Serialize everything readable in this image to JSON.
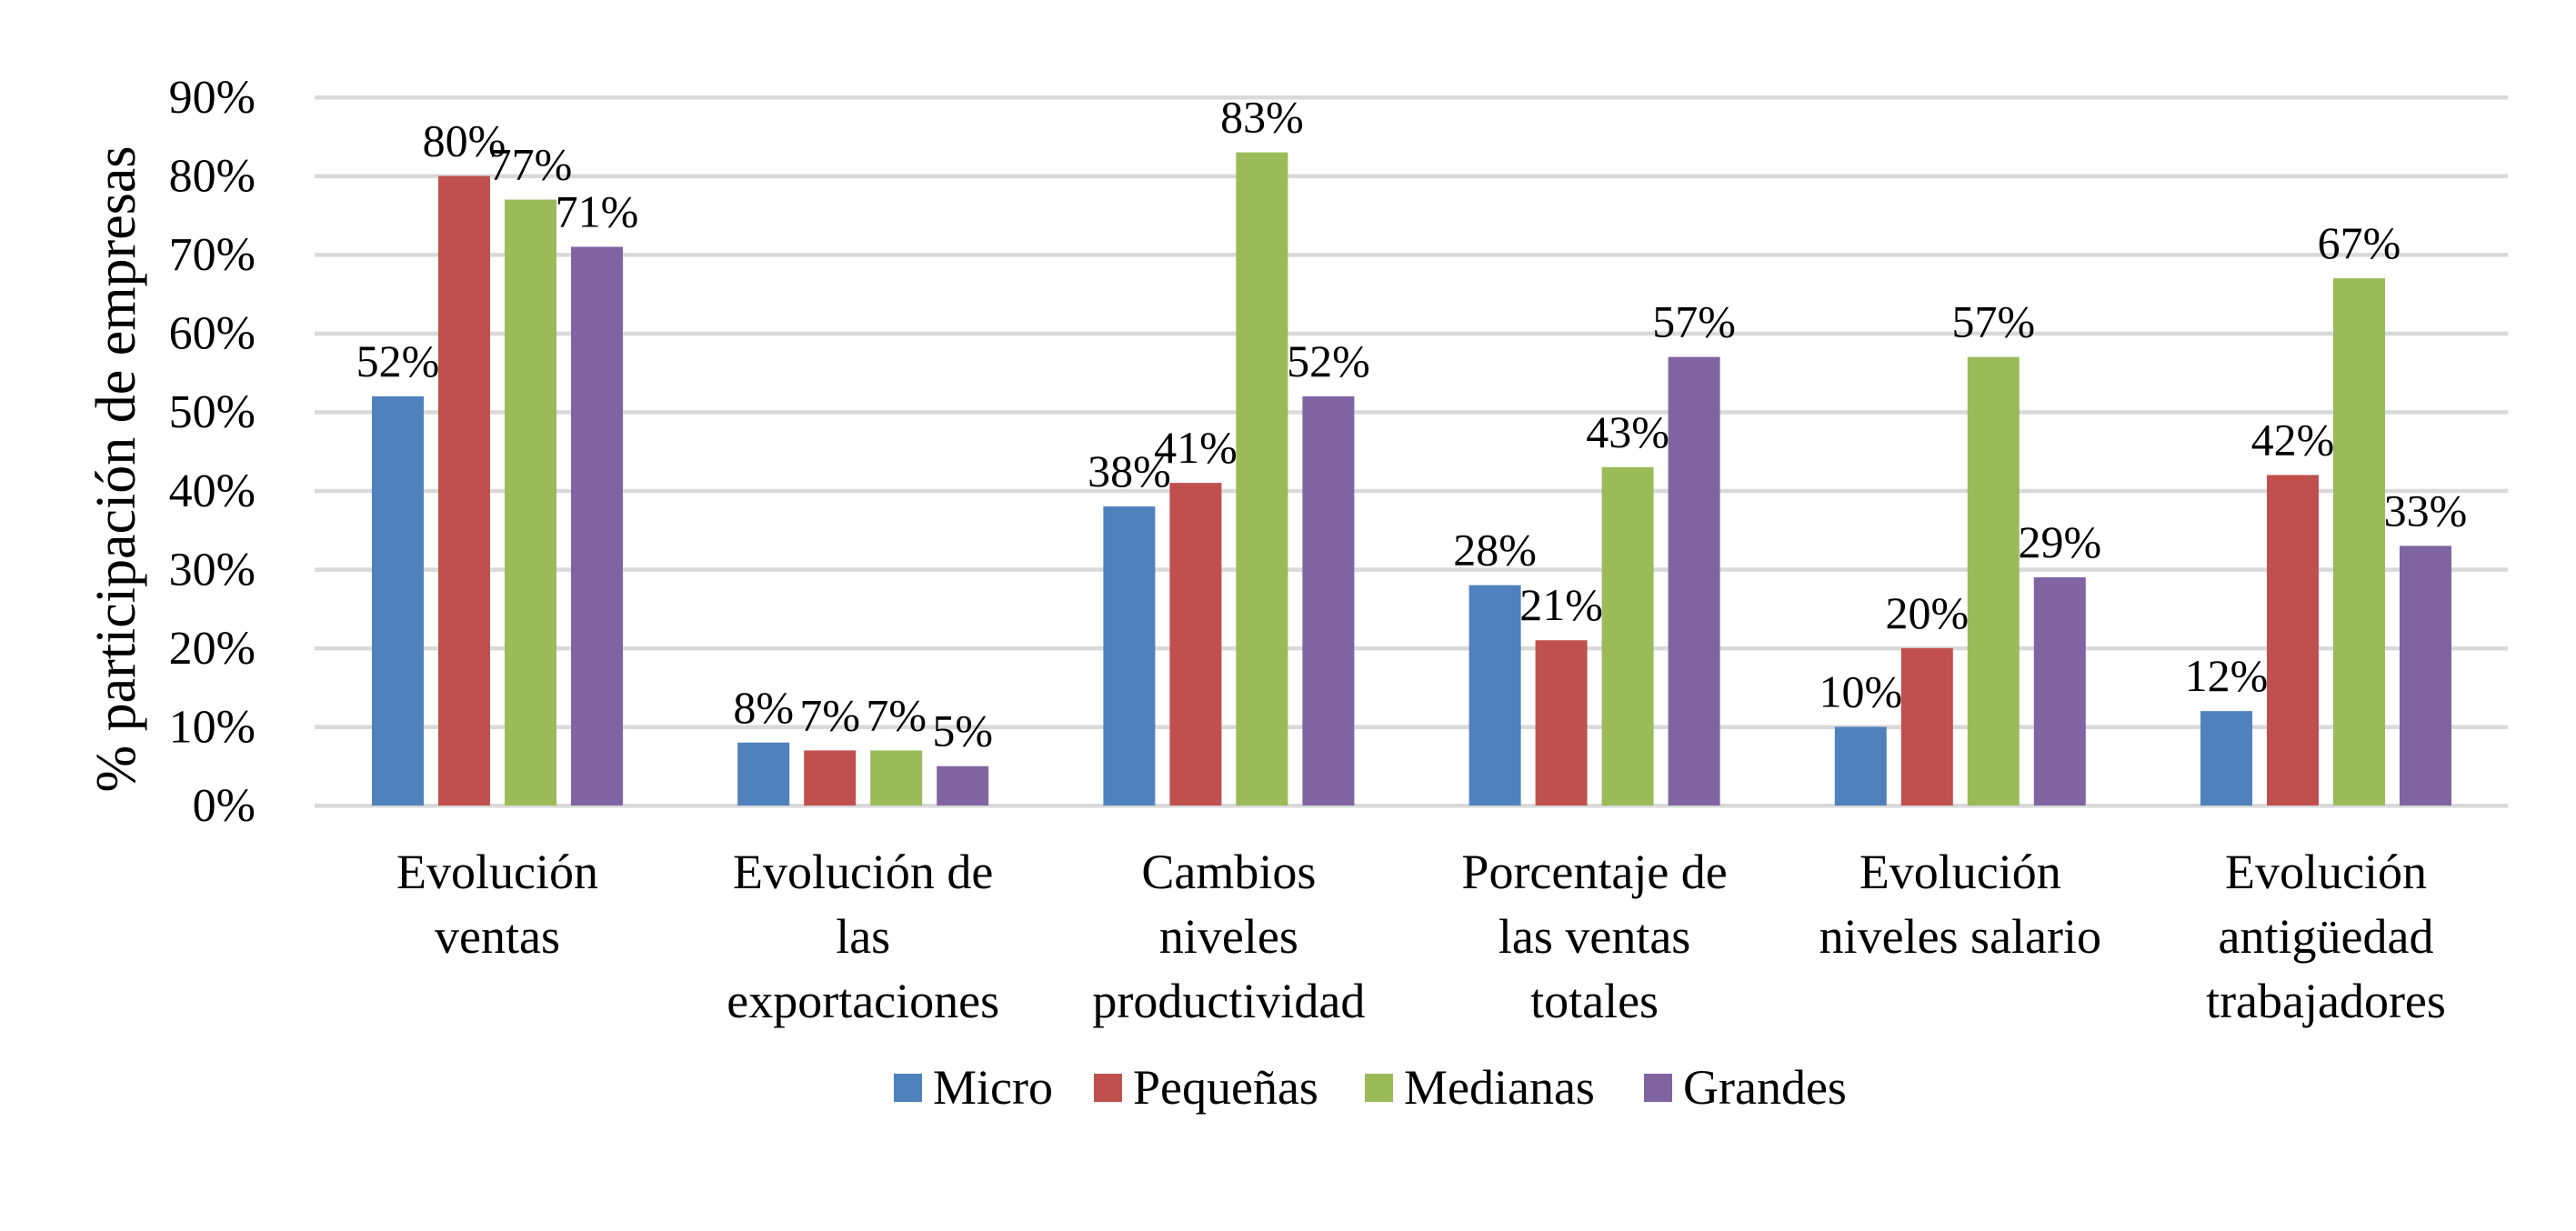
{
  "chart_data": {
    "type": "bar",
    "title": "",
    "xlabel": "",
    "ylabel": "% participación de empresas",
    "ylim": [
      0,
      90
    ],
    "yticks": [
      "0%",
      "10%",
      "20%",
      "30%",
      "40%",
      "50%",
      "60%",
      "70%",
      "80%",
      "90%"
    ],
    "ytick_values": [
      0,
      10,
      20,
      30,
      40,
      50,
      60,
      70,
      80,
      90
    ],
    "grid": true,
    "legend_position": "bottom",
    "categories": [
      [
        "Evolución",
        "ventas"
      ],
      [
        "Evolución de",
        "las",
        "exportaciones"
      ],
      [
        "Cambios",
        "niveles",
        "productividad"
      ],
      [
        "Porcentaje de",
        "las ventas",
        "totales"
      ],
      [
        "Evolución",
        "niveles salario"
      ],
      [
        "Evolución",
        "antigüedad",
        "trabajadores"
      ]
    ],
    "series": [
      {
        "name": "Micro",
        "color": "#4F81BD",
        "values": [
          52,
          8,
          38,
          28,
          10,
          12
        ],
        "labels": [
          "52%",
          "8%",
          "38%",
          "28%",
          "10%",
          "12%"
        ]
      },
      {
        "name": "Pequeñas",
        "color": "#C0504D",
        "values": [
          80,
          7,
          41,
          21,
          20,
          42
        ],
        "labels": [
          "80%",
          "7%",
          "41%",
          "21%",
          "20%",
          "42%"
        ]
      },
      {
        "name": "Medianas",
        "color": "#9BBB59",
        "values": [
          77,
          7,
          83,
          43,
          57,
          67
        ],
        "labels": [
          "77%",
          "7%",
          "83%",
          "43%",
          "57%",
          "67%"
        ]
      },
      {
        "name": "Grandes",
        "color": "#8064A2",
        "values": [
          71,
          5,
          52,
          57,
          29,
          33
        ],
        "labels": [
          "71%",
          "5%",
          "52%",
          "57%",
          "29%",
          "33%"
        ]
      }
    ],
    "gridline_color": "#D9D9D9"
  }
}
